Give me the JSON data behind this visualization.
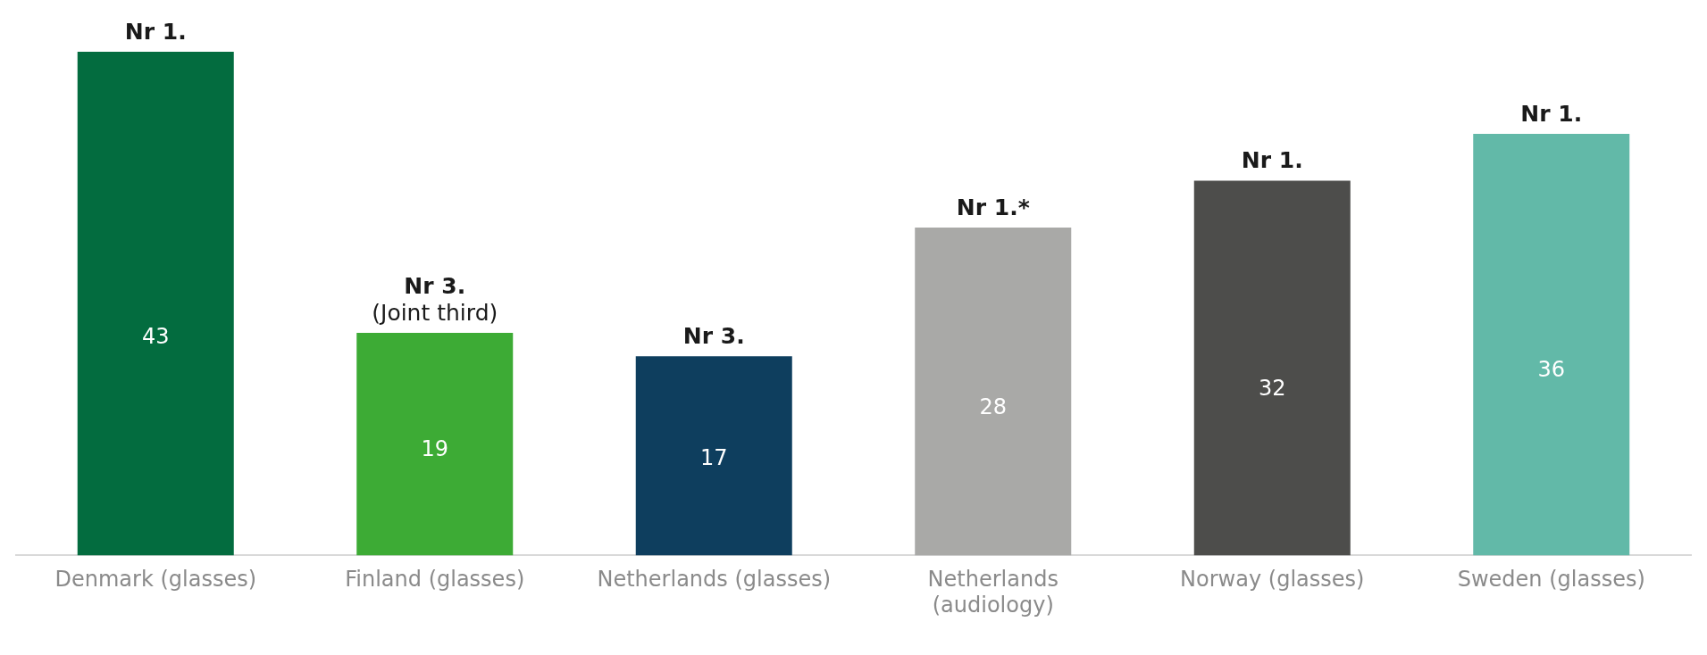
{
  "chart_data": {
    "type": "bar",
    "categories": [
      "Denmark (glasses)",
      "Finland (glasses)",
      "Netherlands (glasses)",
      "Netherlands (audiology)",
      "Norway (glasses)",
      "Sweden (glasses)"
    ],
    "values": [
      43,
      19,
      17,
      28,
      32,
      36
    ],
    "colors": [
      "#036c3f",
      "#3dab35",
      "#0e3e5e",
      "#a9a9a7",
      "#4d4d4b",
      "#62b9a8"
    ],
    "data_labels": true,
    "grid": false,
    "legend": false,
    "annotations": [
      {
        "text": "Nr 1.",
        "x": "Denmark (glasses)",
        "y": 43
      },
      {
        "text": "Nr 3.\n(Joint third)",
        "x": "Finland (glasses)",
        "y": 19
      },
      {
        "text": "Nr 3.",
        "x": "Netherlands (glasses)",
        "y": 17
      },
      {
        "text": "Nr 1.*",
        "x": "Netherlands (audiology)",
        "y": 28
      },
      {
        "text": "Nr 1.",
        "x": "Norway (glasses)",
        "y": 32
      },
      {
        "text": "Nr 1.",
        "x": "Sweden (glasses)",
        "y": 36
      }
    ]
  }
}
